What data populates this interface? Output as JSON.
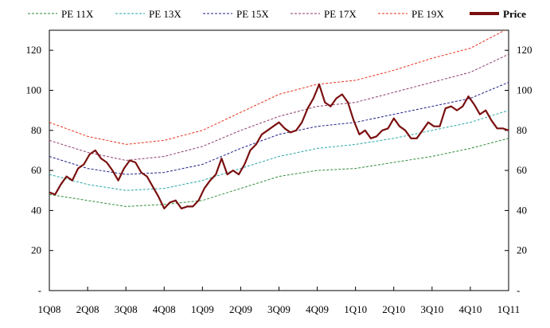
{
  "chart_data": {
    "type": "line",
    "title": "",
    "xlabel": "",
    "ylabel": "",
    "ylim": [
      0,
      130
    ],
    "y_ticks": [
      0,
      20,
      40,
      60,
      80,
      100,
      120
    ],
    "y_tick_labels": [
      "-",
      "20",
      "40",
      "60",
      "80",
      "100",
      "120"
    ],
    "x_range": [
      0,
      12
    ],
    "categories": [
      "1Q08",
      "2Q08",
      "3Q08",
      "4Q08",
      "1Q09",
      "2Q09",
      "3Q09",
      "4Q09",
      "1Q10",
      "2Q10",
      "3Q10",
      "4Q10",
      "1Q11"
    ],
    "legend_position": "top",
    "series": [
      {
        "name": "PE 11X",
        "color": "#2e8b3a",
        "style": "dashed",
        "x": [
          0,
          1,
          2,
          3,
          4,
          5,
          6,
          7,
          8,
          9,
          10,
          11,
          12
        ],
        "values": [
          48,
          45,
          42,
          43,
          45,
          51,
          57,
          60,
          61,
          64,
          67,
          71,
          76
        ]
      },
      {
        "name": "PE 13X",
        "color": "#2aa6a6",
        "style": "dashed",
        "x": [
          0,
          1,
          2,
          3,
          4,
          5,
          6,
          7,
          8,
          9,
          10,
          11,
          12
        ],
        "values": [
          58,
          53,
          50,
          51,
          55,
          61,
          67,
          71,
          73,
          76,
          80,
          84,
          90
        ]
      },
      {
        "name": "PE 15X",
        "color": "#1f1f8c",
        "style": "dashed",
        "x": [
          0,
          1,
          2,
          3,
          4,
          5,
          6,
          7,
          8,
          9,
          10,
          11,
          12
        ],
        "values": [
          67,
          61,
          58,
          59,
          63,
          71,
          78,
          82,
          84,
          88,
          92,
          96,
          104
        ]
      },
      {
        "name": "PE 17X",
        "color": "#8b3a6e",
        "style": "dashed",
        "x": [
          0,
          1,
          2,
          3,
          4,
          5,
          6,
          7,
          8,
          9,
          10,
          11,
          12
        ],
        "values": [
          75,
          69,
          65,
          67,
          72,
          80,
          87,
          92,
          94,
          99,
          104,
          109,
          118
        ]
      },
      {
        "name": "PE 19X",
        "color": "#e8321e",
        "style": "dashed",
        "x": [
          0,
          1,
          2,
          3,
          4,
          5,
          6,
          7,
          8,
          9,
          10,
          11,
          12
        ],
        "values": [
          84,
          77,
          73,
          75,
          80,
          89,
          98,
          103,
          105,
          110,
          116,
          121,
          131
        ]
      },
      {
        "name": "Price",
        "color": "#7a1010",
        "style": "solid",
        "x": [
          0,
          0.15,
          0.3,
          0.45,
          0.6,
          0.75,
          0.9,
          1.05,
          1.2,
          1.35,
          1.5,
          1.65,
          1.8,
          1.95,
          2.1,
          2.25,
          2.4,
          2.55,
          2.7,
          2.85,
          3.0,
          3.15,
          3.3,
          3.45,
          3.6,
          3.75,
          3.9,
          4.05,
          4.2,
          4.35,
          4.5,
          4.65,
          4.8,
          4.95,
          5.1,
          5.25,
          5.4,
          5.55,
          5.7,
          5.85,
          6.0,
          6.15,
          6.3,
          6.45,
          6.6,
          6.75,
          6.9,
          7.05,
          7.2,
          7.35,
          7.5,
          7.65,
          7.8,
          7.95,
          8.1,
          8.25,
          8.4,
          8.55,
          8.7,
          8.85,
          9.0,
          9.15,
          9.3,
          9.45,
          9.6,
          9.75,
          9.9,
          10.05,
          10.2,
          10.35,
          10.5,
          10.65,
          10.8,
          10.95,
          11.1,
          11.25,
          11.4,
          11.55,
          11.7,
          11.85,
          12.0
        ],
        "values": [
          49,
          48,
          53,
          57,
          55,
          61,
          63,
          68,
          70,
          66,
          64,
          60,
          55,
          61,
          65,
          64,
          59,
          57,
          52,
          47,
          41,
          44,
          45,
          41,
          42,
          42,
          45,
          51,
          55,
          58,
          66,
          58,
          60,
          58,
          63,
          70,
          73,
          78,
          80,
          82,
          84,
          81,
          79,
          80,
          84,
          91,
          96,
          103,
          94,
          92,
          96,
          98,
          94,
          85,
          78,
          80,
          76,
          77,
          80,
          81,
          86,
          82,
          80,
          76,
          76,
          80,
          84,
          82,
          82,
          91,
          92,
          90,
          92,
          97,
          93,
          88,
          90,
          85,
          81,
          81,
          80
        ]
      }
    ]
  }
}
